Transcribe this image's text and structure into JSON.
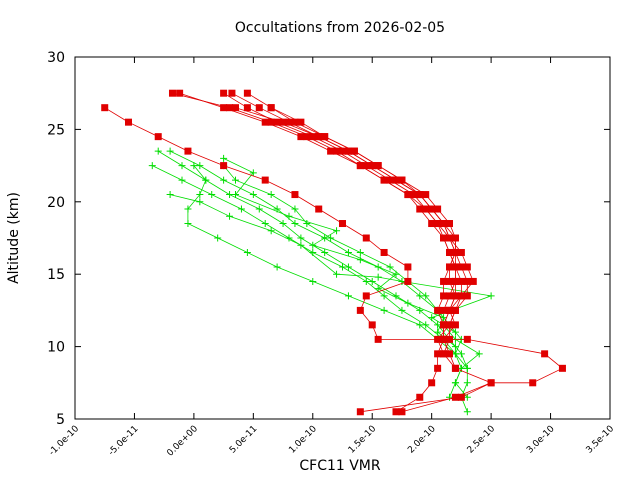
{
  "chart_data": {
    "type": "line",
    "title": "Occultations from 2026-02-05",
    "xlabel": "CFC11 VMR",
    "ylabel": "Altitude (km)",
    "xlim": [
      -1e-10,
      3.5e-10
    ],
    "ylim": [
      5,
      30
    ],
    "x_ticks": [
      {
        "value": -1e-10,
        "label": "-1.0e-10"
      },
      {
        "value": -5e-11,
        "label": "-5.0e-11"
      },
      {
        "value": 0,
        "label": "0.0e+00"
      },
      {
        "value": 5e-11,
        "label": "5.0e-11"
      },
      {
        "value": 1e-10,
        "label": "1.0e-10"
      },
      {
        "value": 1.5e-10,
        "label": "1.5e-10"
      },
      {
        "value": 2e-10,
        "label": "2.0e-10"
      },
      {
        "value": 2.5e-10,
        "label": "2.5e-10"
      },
      {
        "value": 3e-10,
        "label": "3.0e-10"
      },
      {
        "value": 3.5e-10,
        "label": "3.5e-10"
      }
    ],
    "y_ticks": [
      {
        "value": 5,
        "label": "5"
      },
      {
        "value": 10,
        "label": "10"
      },
      {
        "value": 15,
        "label": "15"
      },
      {
        "value": 20,
        "label": "20"
      },
      {
        "value": 25,
        "label": "25"
      },
      {
        "value": 30,
        "label": "30"
      }
    ],
    "grid": false,
    "legend": "none",
    "series": [
      {
        "name": "red-1",
        "color": "#e00000",
        "marker": "square",
        "points": [
          [
            -7.5e-11,
            26.5
          ],
          [
            -5.5e-11,
            25.5
          ],
          [
            -3e-11,
            24.5
          ],
          [
            -5e-12,
            23.5
          ],
          [
            2.5e-11,
            22.5
          ],
          [
            6e-11,
            21.5
          ],
          [
            8.5e-11,
            20.5
          ],
          [
            1.05e-10,
            19.5
          ],
          [
            1.25e-10,
            18.5
          ],
          [
            1.45e-10,
            17.5
          ],
          [
            1.6e-10,
            16.5
          ],
          [
            1.8e-10,
            15.5
          ],
          [
            1.8e-10,
            14.5
          ],
          [
            1.45e-10,
            13.5
          ],
          [
            1.4e-10,
            12.5
          ],
          [
            1.5e-10,
            11.5
          ],
          [
            1.55e-10,
            10.5
          ],
          [
            2.3e-10,
            10.5
          ],
          [
            2.95e-10,
            9.5
          ],
          [
            3.1e-10,
            8.5
          ],
          [
            2.85e-10,
            7.5
          ],
          [
            2.5e-10,
            7.5
          ],
          [
            2.25e-10,
            6.5
          ],
          [
            1.4e-10,
            5.5
          ]
        ]
      },
      {
        "name": "red-2",
        "color": "#e00000",
        "marker": "square",
        "points": [
          [
            -1.8e-11,
            27.5
          ],
          [
            3e-11,
            26.5
          ],
          [
            6.5e-11,
            25.5
          ],
          [
            9.5e-11,
            24.5
          ],
          [
            1.2e-10,
            23.5
          ],
          [
            1.4e-10,
            22.5
          ],
          [
            1.6e-10,
            21.5
          ],
          [
            1.8e-10,
            20.5
          ],
          [
            1.95e-10,
            19.5
          ],
          [
            2.05e-10,
            18.5
          ],
          [
            2.15e-10,
            17.5
          ],
          [
            2.2e-10,
            16.5
          ],
          [
            2.25e-10,
            15.5
          ],
          [
            2.3e-10,
            14.5
          ],
          [
            2.3e-10,
            13.5
          ],
          [
            2.2e-10,
            12.5
          ],
          [
            2.15e-10,
            11.5
          ],
          [
            2.05e-10,
            10.5
          ],
          [
            2.1e-10,
            9.5
          ],
          [
            2.2e-10,
            8.5
          ],
          [
            2.5e-10,
            7.5
          ],
          [
            2.2e-10,
            6.5
          ],
          [
            1.75e-10,
            5.5
          ]
        ]
      },
      {
        "name": "red-3",
        "color": "#e00000",
        "marker": "square",
        "points": [
          [
            3.2e-11,
            27.5
          ],
          [
            5.5e-11,
            26.5
          ],
          [
            8e-11,
            25.5
          ],
          [
            1.05e-10,
            24.5
          ],
          [
            1.3e-10,
            23.5
          ],
          [
            1.5e-10,
            22.5
          ],
          [
            1.7e-10,
            21.5
          ],
          [
            1.9e-10,
            20.5
          ],
          [
            2e-10,
            19.5
          ],
          [
            2.1e-10,
            18.5
          ],
          [
            2.15e-10,
            17.5
          ],
          [
            2.25e-10,
            16.5
          ],
          [
            2.3e-10,
            15.5
          ],
          [
            2.35e-10,
            14.5
          ],
          [
            2.25e-10,
            13.5
          ],
          [
            2.15e-10,
            12.5
          ],
          [
            2.1e-10,
            11.5
          ],
          [
            2.1e-10,
            10.5
          ],
          [
            2.05e-10,
            9.5
          ],
          [
            2.05e-10,
            8.5
          ],
          [
            2e-10,
            7.5
          ],
          [
            1.9e-10,
            6.5
          ],
          [
            1.7e-10,
            5.5
          ]
        ]
      },
      {
        "name": "red-4",
        "color": "#e00000",
        "marker": "square",
        "points": [
          [
            -1.2e-11,
            27.5
          ],
          [
            2.5e-11,
            26.5
          ],
          [
            6e-11,
            25.5
          ],
          [
            9e-11,
            24.5
          ],
          [
            1.15e-10,
            23.5
          ],
          [
            1.4e-10,
            22.5
          ],
          [
            1.6e-10,
            21.5
          ],
          [
            1.8e-10,
            20.5
          ],
          [
            1.9e-10,
            19.5
          ],
          [
            2e-10,
            18.5
          ],
          [
            2.1e-10,
            17.5
          ],
          [
            2.15e-10,
            16.5
          ],
          [
            2.2e-10,
            15.5
          ],
          [
            2.25e-10,
            14.5
          ],
          [
            2.25e-10,
            13.5
          ],
          [
            2.2e-10,
            12.5
          ],
          [
            2.15e-10,
            11.5
          ],
          [
            2.15e-10,
            10.5
          ],
          [
            2.1e-10,
            9.5
          ]
        ]
      },
      {
        "name": "red-5",
        "color": "#e00000",
        "marker": "square",
        "points": [
          [
            2.5e-11,
            27.5
          ],
          [
            4.5e-11,
            26.5
          ],
          [
            7e-11,
            25.5
          ],
          [
            1e-10,
            24.5
          ],
          [
            1.25e-10,
            23.5
          ],
          [
            1.45e-10,
            22.5
          ],
          [
            1.65e-10,
            21.5
          ],
          [
            1.85e-10,
            20.5
          ],
          [
            1.95e-10,
            19.5
          ],
          [
            2.05e-10,
            18.5
          ],
          [
            2.1e-10,
            17.5
          ],
          [
            2.15e-10,
            16.5
          ],
          [
            2.2e-10,
            15.5
          ],
          [
            2.2e-10,
            14.5
          ],
          [
            2.2e-10,
            13.5
          ],
          [
            2.15e-10,
            12.5
          ],
          [
            2.2e-10,
            11.5
          ],
          [
            2.1e-10,
            10.5
          ],
          [
            2.15e-10,
            9.5
          ],
          [
            2.2e-10,
            8.5
          ]
        ]
      },
      {
        "name": "red-6",
        "color": "#e00000",
        "marker": "square",
        "points": [
          [
            4.5e-11,
            27.5
          ],
          [
            6.5e-11,
            26.5
          ],
          [
            9e-11,
            25.5
          ],
          [
            1.1e-10,
            24.5
          ],
          [
            1.35e-10,
            23.5
          ],
          [
            1.55e-10,
            22.5
          ],
          [
            1.75e-10,
            21.5
          ],
          [
            1.95e-10,
            20.5
          ],
          [
            2.05e-10,
            19.5
          ],
          [
            2.15e-10,
            18.5
          ],
          [
            2.2e-10,
            17.5
          ],
          [
            2.2e-10,
            16.5
          ],
          [
            2.15e-10,
            15.5
          ],
          [
            2.1e-10,
            14.5
          ],
          [
            2.1e-10,
            13.5
          ],
          [
            2.05e-10,
            12.5
          ],
          [
            2.1e-10,
            11.5
          ],
          [
            2.1e-10,
            10.5
          ]
        ]
      },
      {
        "name": "red-7",
        "color": "#e00000",
        "marker": "square",
        "points": [
          [
            3.5e-11,
            26.5
          ],
          [
            7.5e-11,
            25.5
          ],
          [
            1.05e-10,
            24.5
          ],
          [
            1.3e-10,
            23.5
          ],
          [
            1.5e-10,
            22.5
          ],
          [
            1.7e-10,
            21.5
          ],
          [
            1.9e-10,
            20.5
          ],
          [
            2e-10,
            19.5
          ],
          [
            2.1e-10,
            18.5
          ],
          [
            2.15e-10,
            17.5
          ],
          [
            2.2e-10,
            16.5
          ],
          [
            2.15e-10,
            15.5
          ],
          [
            2.15e-10,
            14.5
          ],
          [
            2.2e-10,
            13.5
          ],
          [
            2.15e-10,
            12.5
          ],
          [
            2.1e-10,
            11.5
          ]
        ]
      },
      {
        "name": "red-8",
        "color": "#e00000",
        "marker": "square",
        "points": [
          [
            6.5e-11,
            26.5
          ],
          [
            8.5e-11,
            25.5
          ],
          [
            1.1e-10,
            24.5
          ],
          [
            1.35e-10,
            23.5
          ],
          [
            1.55e-10,
            22.5
          ],
          [
            1.75e-10,
            21.5
          ],
          [
            1.9e-10,
            20.5
          ],
          [
            2e-10,
            19.5
          ],
          [
            2.1e-10,
            18.5
          ],
          [
            2.2e-10,
            17.5
          ],
          [
            2.2e-10,
            16.5
          ],
          [
            2.2e-10,
            15.5
          ],
          [
            2.2e-10,
            14.5
          ],
          [
            2.15e-10,
            13.5
          ],
          [
            2.1e-10,
            12.5
          ]
        ]
      },
      {
        "name": "green-1",
        "color": "#00dd00",
        "marker": "plus",
        "points": [
          [
            -3e-11,
            23.5
          ],
          [
            -1e-11,
            22.5
          ],
          [
            1e-11,
            21.5
          ],
          [
            3e-11,
            20.5
          ],
          [
            5.5e-11,
            19.5
          ],
          [
            7.5e-11,
            18.5
          ],
          [
            9e-11,
            17.5
          ],
          [
            1.1e-10,
            16.5
          ],
          [
            1.3e-10,
            15.5
          ],
          [
            1.5e-10,
            14.5
          ],
          [
            1.7e-10,
            13.5
          ],
          [
            1.9e-10,
            12.5
          ],
          [
            2.05e-10,
            11.5
          ],
          [
            2.15e-10,
            10.5
          ],
          [
            2.25e-10,
            9.5
          ],
          [
            2.3e-10,
            8.5
          ],
          [
            2.3e-10,
            7.5
          ],
          [
            2.25e-10,
            6.5
          ],
          [
            2.3e-10,
            5.5
          ]
        ]
      },
      {
        "name": "green-2",
        "color": "#00dd00",
        "marker": "plus",
        "points": [
          [
            -3.5e-11,
            22.5
          ],
          [
            -1e-11,
            21.5
          ],
          [
            1.5e-11,
            20.5
          ],
          [
            4e-11,
            19.5
          ],
          [
            6e-11,
            18.5
          ],
          [
            8e-11,
            17.5
          ],
          [
            1e-10,
            16.5
          ],
          [
            1.25e-10,
            15.5
          ],
          [
            1.45e-10,
            14.5
          ],
          [
            1.6e-10,
            13.5
          ],
          [
            1.75e-10,
            12.5
          ],
          [
            1.95e-10,
            11.5
          ],
          [
            2.1e-10,
            10.5
          ],
          [
            2.2e-10,
            9.5
          ],
          [
            2.25e-10,
            8.5
          ],
          [
            2.2e-10,
            7.5
          ],
          [
            2.15e-10,
            6.5
          ]
        ]
      },
      {
        "name": "green-3",
        "color": "#00dd00",
        "marker": "plus",
        "points": [
          [
            -2e-11,
            23.5
          ],
          [
            5e-12,
            22.5
          ],
          [
            2.5e-11,
            21.5
          ],
          [
            5e-11,
            20.5
          ],
          [
            7e-11,
            19.5
          ],
          [
            8.5e-11,
            18.5
          ],
          [
            1.1e-10,
            17.5
          ],
          [
            1.3e-10,
            16.5
          ],
          [
            1.55e-10,
            15.5
          ],
          [
            1.75e-10,
            14.5
          ],
          [
            1.9e-10,
            13.5
          ],
          [
            2.05e-10,
            12.5
          ],
          [
            2.1e-10,
            11.5
          ],
          [
            2.2e-10,
            10.5
          ],
          [
            2.4e-10,
            9.5
          ],
          [
            2.25e-10,
            8.5
          ],
          [
            2.2e-10,
            7.5
          ],
          [
            2.3e-10,
            6.5
          ]
        ]
      },
      {
        "name": "green-4",
        "color": "#00dd00",
        "marker": "plus",
        "points": [
          [
            0,
            22.5
          ],
          [
            1e-11,
            21.5
          ],
          [
            5e-12,
            20.5
          ],
          [
            -5e-12,
            19.5
          ],
          [
            -5e-12,
            18.5
          ],
          [
            2e-11,
            17.5
          ],
          [
            4.5e-11,
            16.5
          ],
          [
            7e-11,
            15.5
          ],
          [
            1e-10,
            14.5
          ],
          [
            1.3e-10,
            13.5
          ],
          [
            1.6e-10,
            12.5
          ],
          [
            1.9e-10,
            11.5
          ],
          [
            2.05e-10,
            10.5
          ],
          [
            2.2e-10,
            9.5
          ],
          [
            2.3e-10,
            8.5
          ]
        ]
      },
      {
        "name": "green-5",
        "color": "#00dd00",
        "marker": "plus",
        "points": [
          [
            2.5e-11,
            22.5
          ],
          [
            3.5e-11,
            21.5
          ],
          [
            6.5e-11,
            20.5
          ],
          [
            8.5e-11,
            19.5
          ],
          [
            9.5e-11,
            18.5
          ],
          [
            1.15e-10,
            17.5
          ],
          [
            1.4e-10,
            16.5
          ],
          [
            1.65e-10,
            15.5
          ],
          [
            1.8e-10,
            14.5
          ],
          [
            1.95e-10,
            13.5
          ],
          [
            2.05e-10,
            12.5
          ],
          [
            2.15e-10,
            11.5
          ],
          [
            2.25e-10,
            10.5
          ],
          [
            2.2e-10,
            9.5
          ]
        ]
      },
      {
        "name": "green-6",
        "color": "#00dd00",
        "marker": "plus",
        "points": [
          [
            2.5e-11,
            23.0
          ],
          [
            5e-11,
            22.0
          ],
          [
            3.5e-11,
            20.5
          ],
          [
            8e-11,
            19.0
          ],
          [
            1.2e-10,
            18.0
          ],
          [
            1e-10,
            17.0
          ],
          [
            1.4e-10,
            16.0
          ],
          [
            1.7e-10,
            15.0
          ],
          [
            1.55e-10,
            14.0
          ],
          [
            1.8e-10,
            13.0
          ],
          [
            2.1e-10,
            12.0
          ],
          [
            2.05e-10,
            11.0
          ],
          [
            2.2e-10,
            10.0
          ]
        ]
      },
      {
        "name": "green-7",
        "color": "#00dd00",
        "marker": "plus",
        "points": [
          [
            -2e-11,
            20.5
          ],
          [
            5e-12,
            20.0
          ],
          [
            3e-11,
            19.0
          ],
          [
            6.5e-11,
            18.0
          ],
          [
            9e-11,
            17.0
          ],
          [
            1.2e-10,
            15.0
          ],
          [
            1.55e-10,
            14.8
          ],
          [
            1.75e-10,
            14.5
          ],
          [
            2.5e-10,
            13.5
          ],
          [
            2e-10,
            12.0
          ],
          [
            2.2e-10,
            11.0
          ]
        ]
      }
    ]
  }
}
